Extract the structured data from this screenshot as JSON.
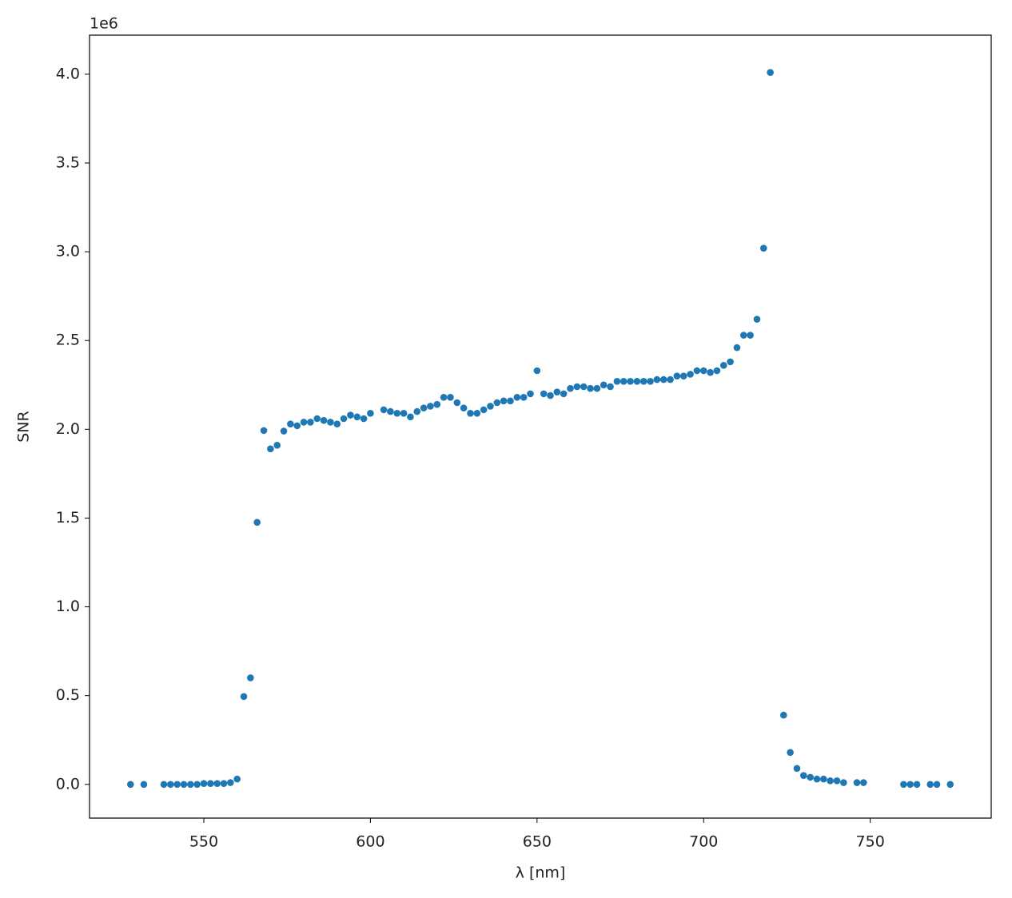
{
  "chart_data": {
    "type": "scatter",
    "xlabel": "λ [nm]",
    "ylabel": "SNR",
    "y_offset_label": "1e6",
    "color": "#1f77b4",
    "xlim": [
      515.7,
      786.3
    ],
    "xticks": [
      550,
      600,
      650,
      700,
      750
    ],
    "ylim": [
      -0.19,
      4.22
    ],
    "yticks": [
      {
        "value": 0,
        "label": "0.0"
      },
      0.5,
      {
        "value": 1,
        "label": "1.0"
      },
      1.5,
      {
        "value": 2,
        "label": "2.0"
      },
      2.5,
      {
        "value": 3,
        "label": "3.0"
      },
      3.5,
      {
        "value": 4,
        "label": "4.0"
      }
    ],
    "x": [
      528,
      532,
      538,
      540,
      542,
      544,
      546,
      548,
      550,
      552,
      554,
      556,
      558,
      560,
      562,
      564,
      566,
      568,
      570,
      572,
      574,
      576,
      578,
      580,
      582,
      584,
      586,
      588,
      590,
      592,
      594,
      596,
      598,
      600,
      604,
      606,
      608,
      610,
      612,
      614,
      616,
      618,
      620,
      622,
      624,
      626,
      628,
      630,
      632,
      634,
      636,
      638,
      640,
      642,
      644,
      646,
      648,
      650,
      652,
      654,
      656,
      658,
      660,
      662,
      664,
      666,
      668,
      670,
      672,
      674,
      676,
      678,
      680,
      682,
      684,
      686,
      688,
      690,
      692,
      694,
      696,
      698,
      700,
      702,
      704,
      706,
      708,
      710,
      712,
      714,
      716,
      718,
      720,
      724,
      726,
      728,
      730,
      732,
      734,
      736,
      738,
      740,
      742,
      746,
      748,
      760,
      762,
      764,
      768,
      770,
      774
    ],
    "values": [
      0,
      0,
      0,
      0,
      0,
      0,
      0,
      0,
      0.005,
      0.005,
      0.005,
      0.005,
      0.01,
      0.03,
      0.495,
      0.6,
      1.476,
      1.993,
      1.89,
      1.91,
      1.99,
      2.03,
      2.02,
      2.04,
      2.04,
      2.06,
      2.05,
      2.04,
      2.03,
      2.06,
      2.08,
      2.07,
      2.06,
      2.09,
      2.11,
      2.1,
      2.09,
      2.09,
      2.07,
      2.1,
      2.12,
      2.13,
      2.14,
      2.18,
      2.18,
      2.15,
      2.12,
      2.09,
      2.09,
      2.11,
      2.13,
      2.15,
      2.16,
      2.16,
      2.18,
      2.18,
      2.2,
      2.33,
      2.2,
      2.19,
      2.21,
      2.2,
      2.23,
      2.24,
      2.24,
      2.23,
      2.23,
      2.25,
      2.24,
      2.27,
      2.27,
      2.27,
      2.27,
      2.27,
      2.27,
      2.28,
      2.28,
      2.28,
      2.3,
      2.3,
      2.31,
      2.33,
      2.33,
      2.32,
      2.33,
      2.36,
      2.38,
      2.46,
      2.53,
      2.53,
      2.62,
      3.02,
      4.01,
      0.39,
      0.18,
      0.09,
      0.05,
      0.04,
      0.03,
      0.03,
      0.02,
      0.02,
      0.01,
      0.01,
      0.01,
      0,
      0,
      0,
      0,
      0,
      0
    ]
  }
}
